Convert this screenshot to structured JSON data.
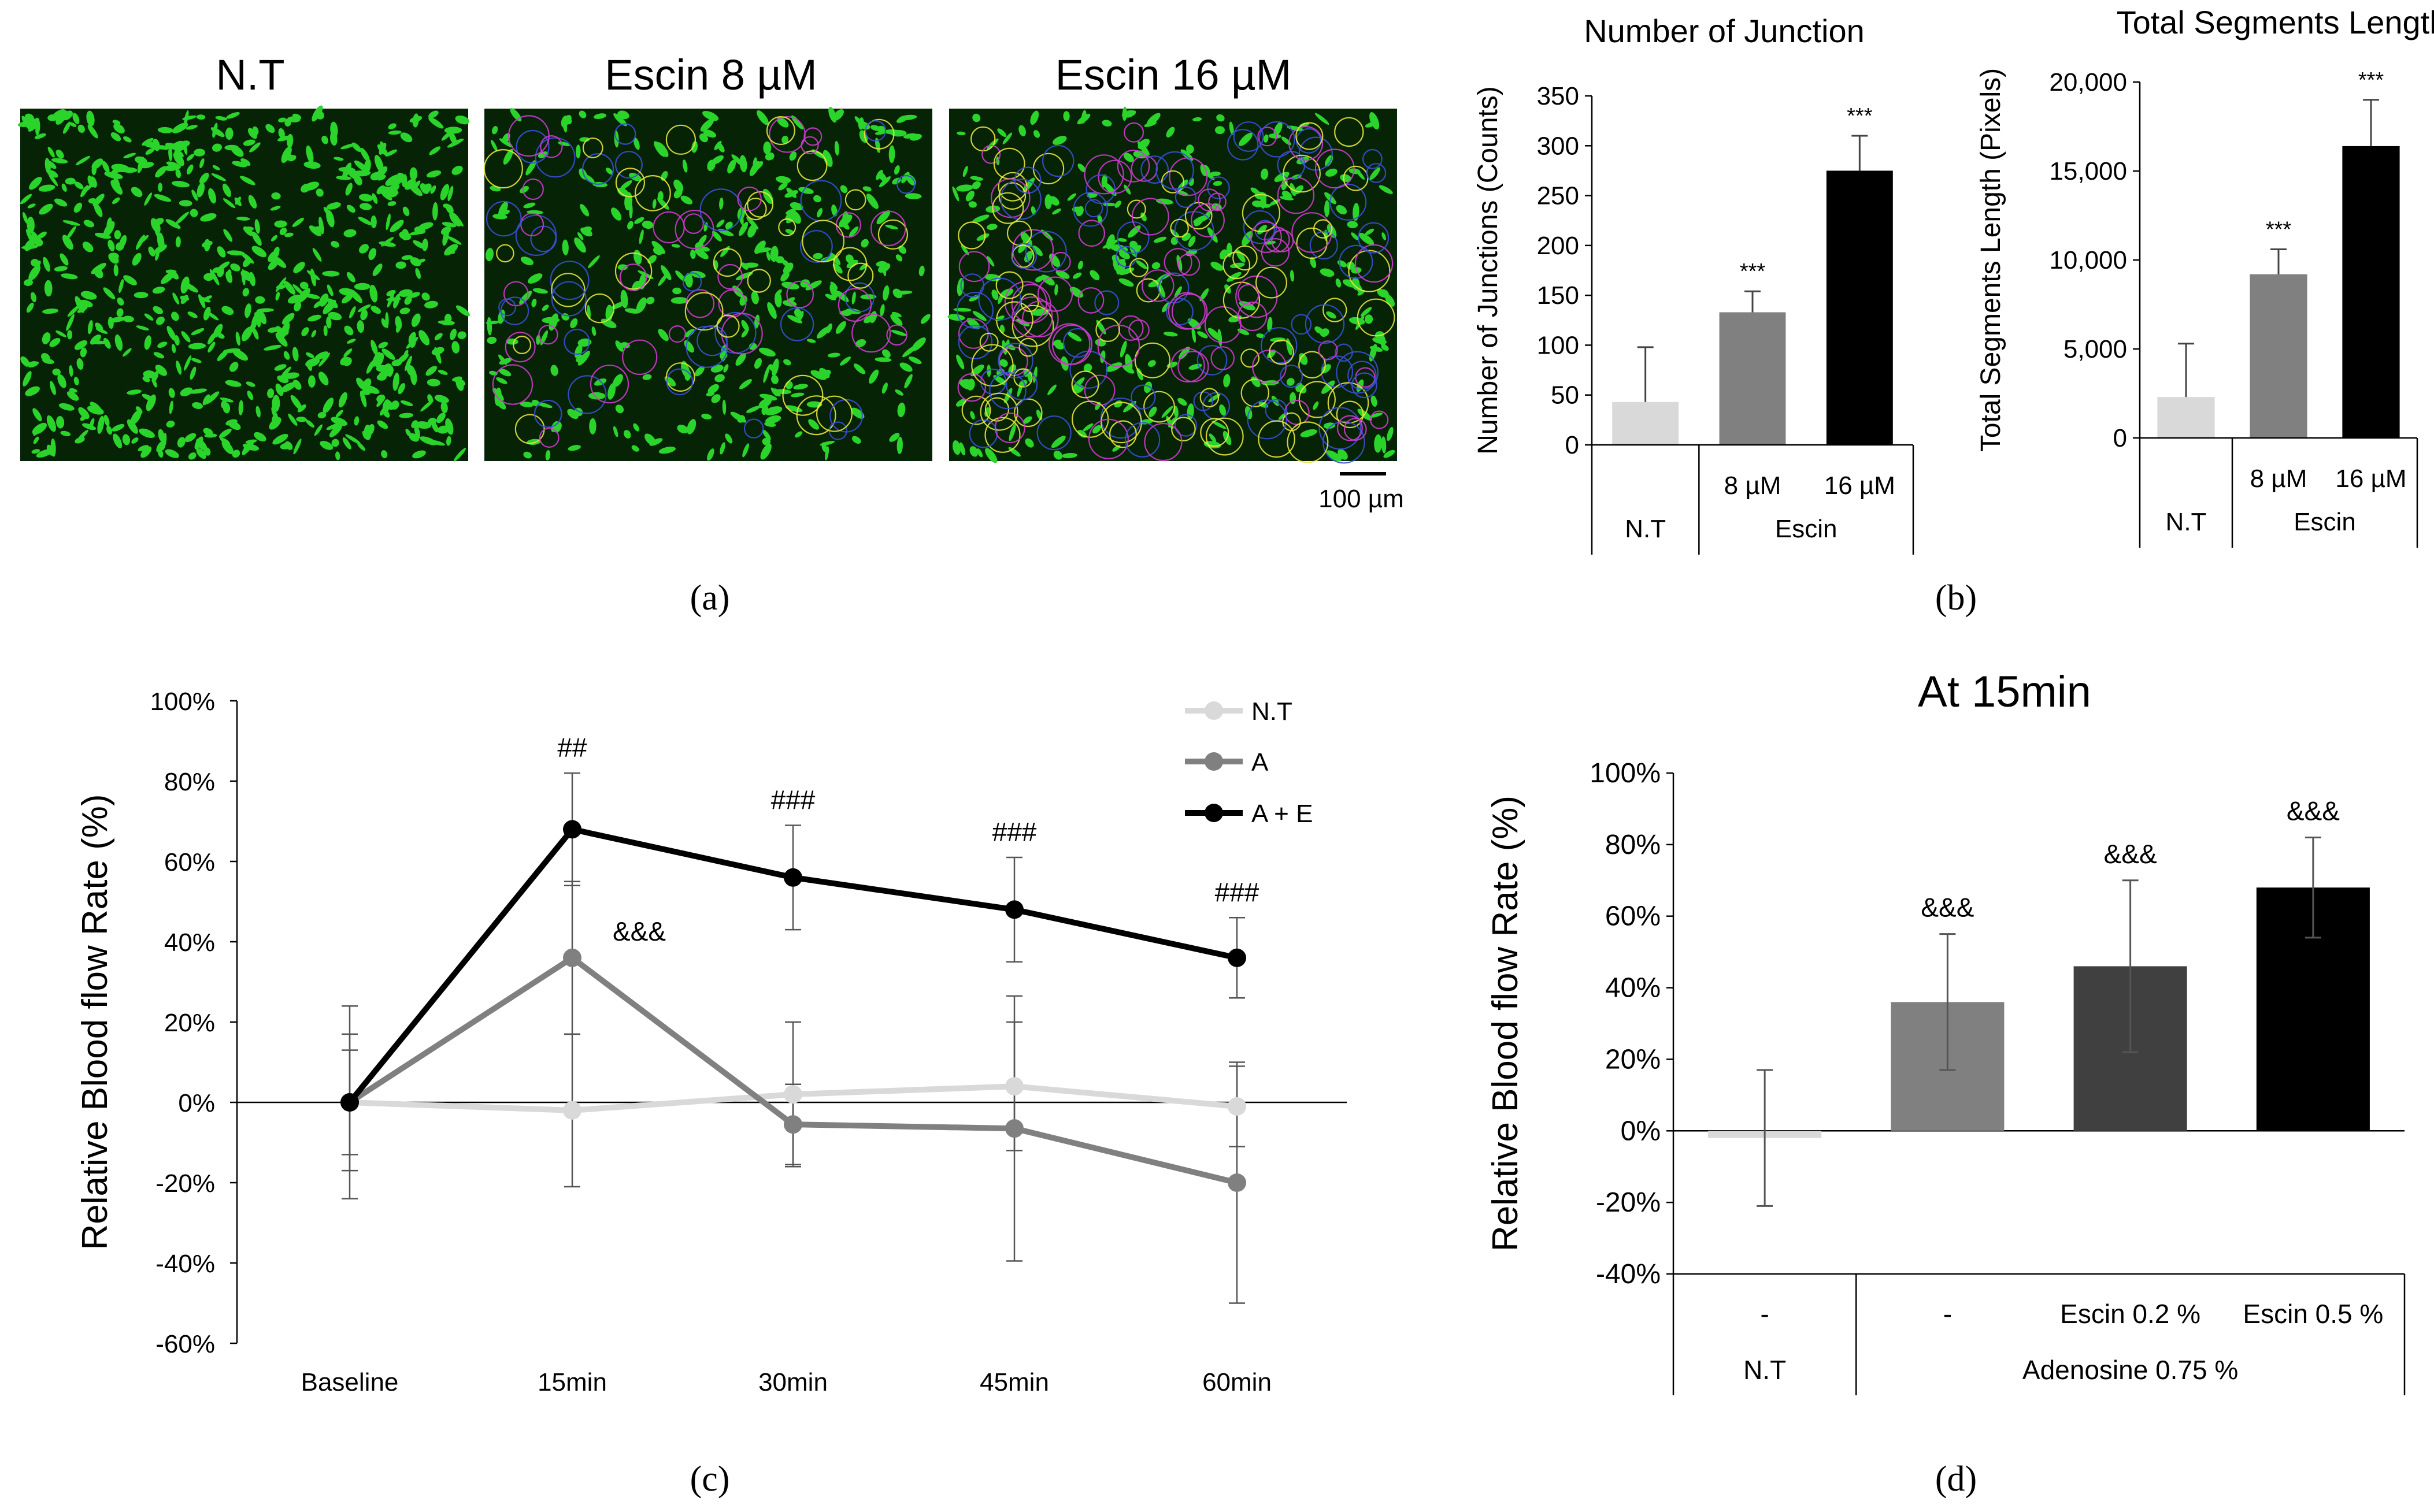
{
  "panel_labels": {
    "a": "(a)",
    "b": "(b)",
    "c": "(c)",
    "d": "(d)"
  },
  "panel_a": {
    "titles": [
      "N.T",
      "Escin 8 µM",
      "Escin 16 µM"
    ],
    "scale_bar": "100 µm"
  },
  "colors": {
    "light": "#d9d9d9",
    "mid": "#808080",
    "dark_mid": "#404040",
    "black": "#000000",
    "cell_green": "#2bd42b",
    "mesh_blue": "#3a4fd8",
    "mesh_yellow": "#e6e63c",
    "mesh_magenta": "#d03ad0"
  },
  "chart_data": [
    {
      "id": "junctions",
      "type": "bar",
      "title": "Number of Junction",
      "ylabel": "Number of Junctions (Counts)",
      "ylim": [
        0,
        350
      ],
      "yticks": [
        "0",
        "50",
        "100",
        "150",
        "200",
        "250",
        "300",
        "350"
      ],
      "categories": [
        "",
        "8 µM",
        "16 µM"
      ],
      "groups": [
        "N.T",
        "Escin"
      ],
      "values": [
        43,
        133,
        275
      ],
      "errors": [
        55,
        21,
        35
      ],
      "significance": [
        "",
        "***",
        "***"
      ],
      "colors": [
        "#d9d9d9",
        "#808080",
        "#000000"
      ]
    },
    {
      "id": "segments",
      "type": "bar",
      "title": "Total Segments Length",
      "ylabel": "Total Segments Length (Pixels)",
      "ylim": [
        0,
        20000
      ],
      "yticks": [
        "0",
        "5,000",
        "10,000",
        "15,000",
        "20,000"
      ],
      "categories": [
        "",
        "8 µM",
        "16 µM"
      ],
      "groups": [
        "N.T",
        "Escin"
      ],
      "values": [
        2300,
        9200,
        16400
      ],
      "errors": [
        3000,
        1400,
        2600
      ],
      "significance": [
        "",
        "***",
        "***"
      ],
      "colors": [
        "#d9d9d9",
        "#808080",
        "#000000"
      ]
    },
    {
      "id": "timecourse",
      "type": "line",
      "ylabel": "Relative Blood flow Rate (%)",
      "ylim": [
        -60,
        100
      ],
      "yticks": [
        "100%",
        "80%",
        "60%",
        "40%",
        "20%",
        "0%",
        "-20%",
        "-40%",
        "-60%"
      ],
      "categories": [
        "Baseline",
        "15min",
        "30min",
        "45min",
        "60min"
      ],
      "series": [
        {
          "name": "N.T",
          "color": "#d9d9d9",
          "values": [
            0,
            -2,
            2,
            4,
            -1
          ],
          "errors": [
            17,
            19,
            18,
            16,
            10
          ]
        },
        {
          "name": "A",
          "color": "#808080",
          "values": [
            0,
            36,
            -5.5,
            -6.5,
            -20
          ],
          "errors": [
            24,
            19,
            10,
            33,
            30
          ]
        },
        {
          "name": "A + E",
          "color": "#000000",
          "values": [
            0,
            68,
            56,
            48,
            36
          ],
          "errors": [
            13,
            14,
            13,
            13,
            10
          ]
        }
      ],
      "annotations_top": [
        "",
        "##",
        "###",
        "###",
        "###"
      ],
      "annotation_a": {
        "category": "15min",
        "text": "&&&"
      }
    },
    {
      "id": "at15",
      "type": "bar",
      "title": "At 15min",
      "ylabel": "Relative Blood flow Rate (%)",
      "ylim": [
        -40,
        100
      ],
      "yticks": [
        "100%",
        "80%",
        "60%",
        "40%",
        "20%",
        "0%",
        "-20%",
        "-40%"
      ],
      "categories": [
        "-",
        "-",
        "Escin 0.2 %",
        "Escin 0.5 %"
      ],
      "groups": [
        "N.T",
        "Adenosine 0.75 %"
      ],
      "values": [
        -2,
        36,
        46,
        68
      ],
      "errors": [
        19,
        19,
        24,
        14
      ],
      "significance": [
        "",
        "&&&",
        "&&&",
        "&&&"
      ],
      "colors": [
        "#d9d9d9",
        "#808080",
        "#404040",
        "#000000"
      ]
    }
  ]
}
